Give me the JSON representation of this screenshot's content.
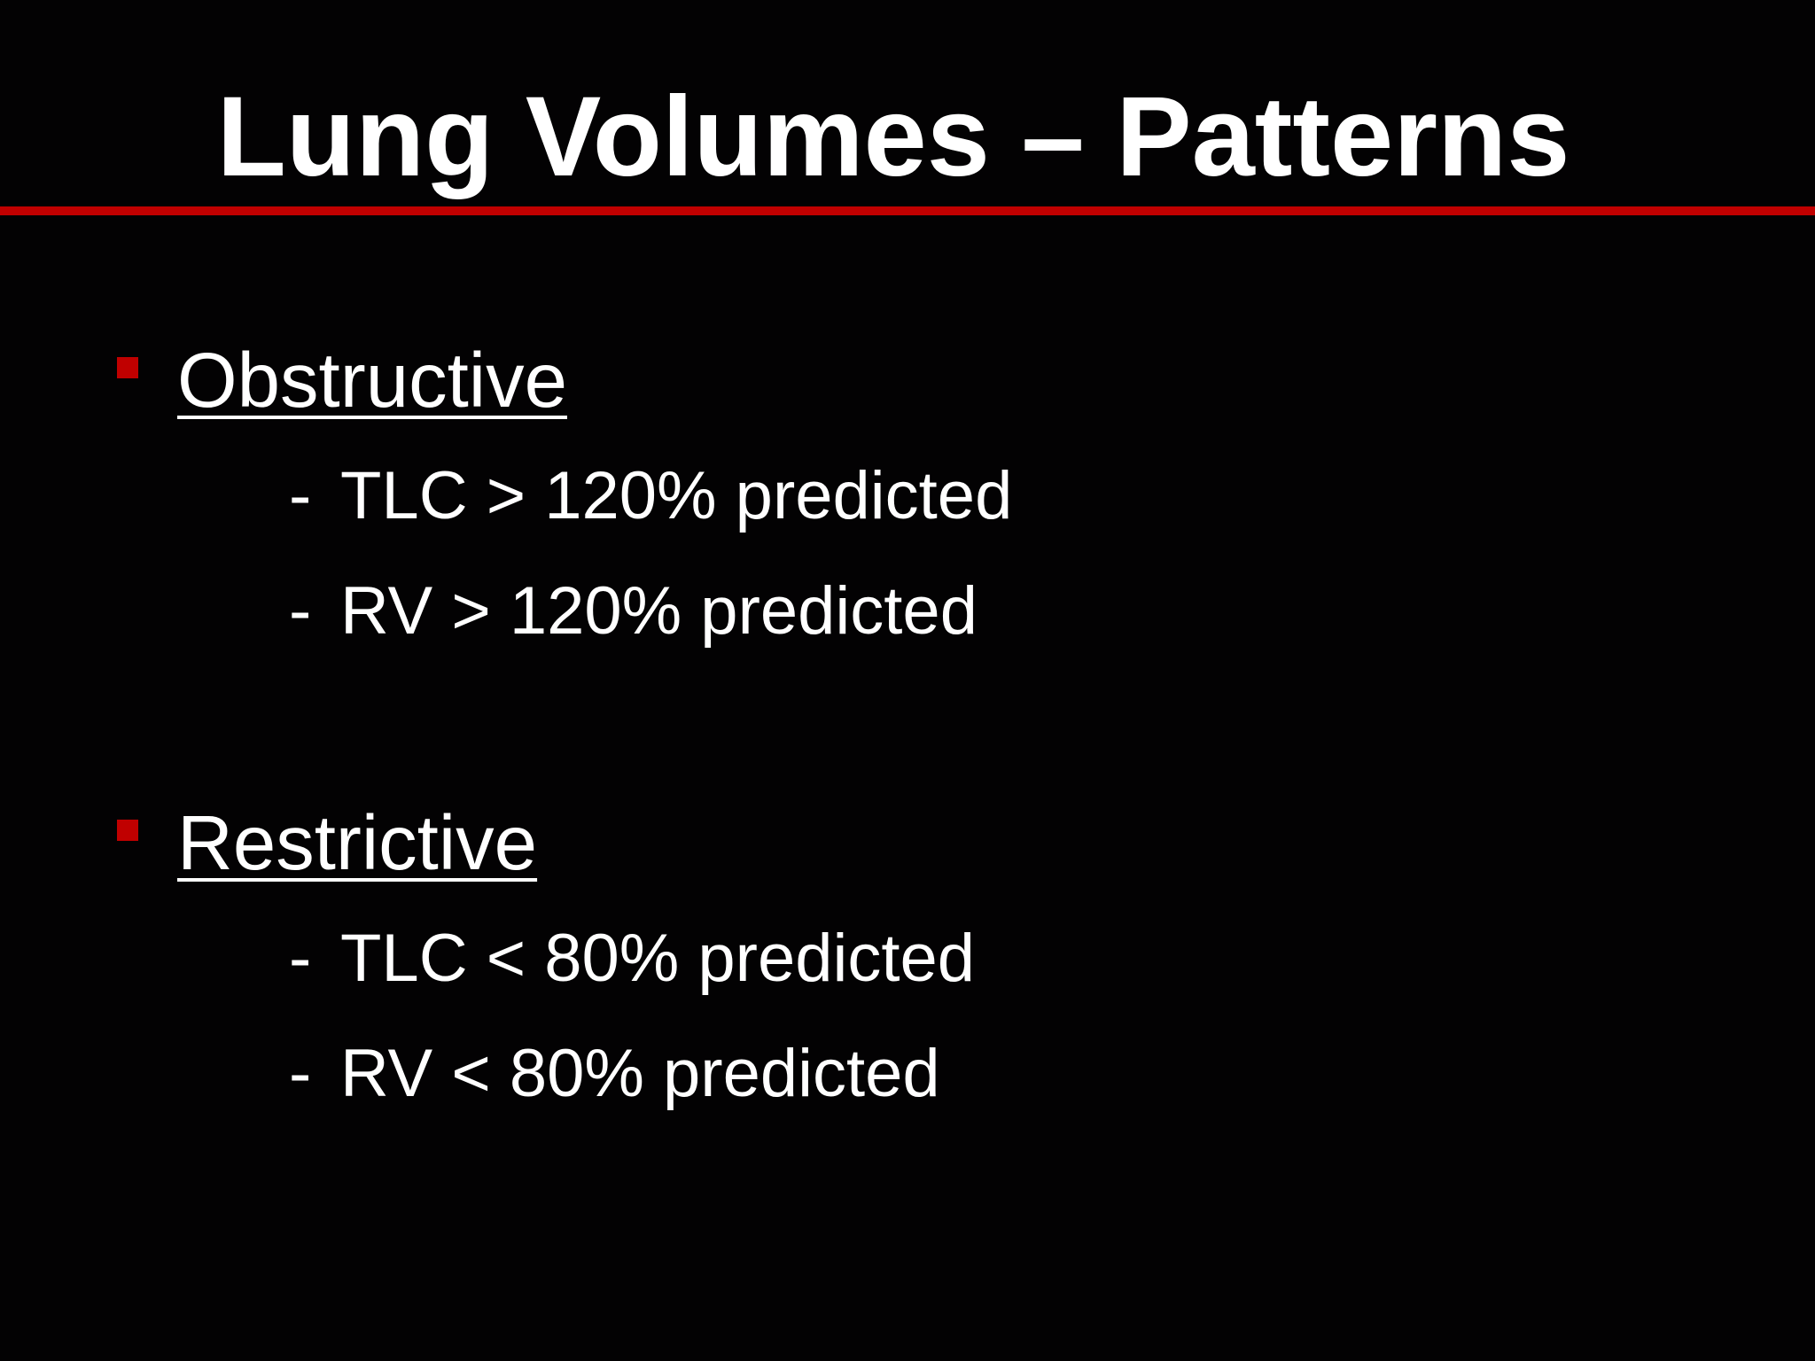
{
  "slide": {
    "title": "Lung Volumes – Patterns",
    "accent_color": "#c00000",
    "background_color": "#030203",
    "sections": [
      {
        "heading": "Obstructive",
        "bullet_icon": "red-square-bullet",
        "items": [
          {
            "dash": "-",
            "text": "TLC > 120% predicted"
          },
          {
            "dash": "-",
            "text": "RV > 120% predicted"
          }
        ]
      },
      {
        "heading": "Restrictive",
        "bullet_icon": "red-square-bullet",
        "items": [
          {
            "dash": "-",
            "text": "TLC < 80% predicted"
          },
          {
            "dash": "-",
            "text": "RV < 80% predicted"
          }
        ]
      }
    ]
  }
}
